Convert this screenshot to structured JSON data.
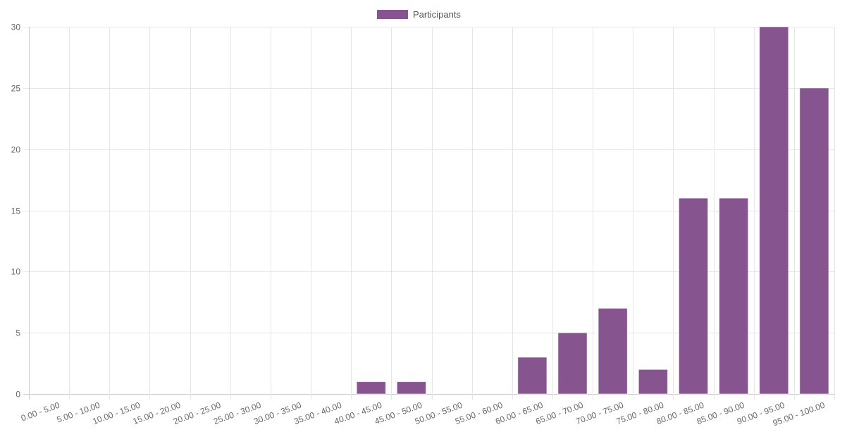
{
  "chart_data": {
    "type": "bar",
    "categories": [
      "0.00 - 5.00",
      "5.00 - 10.00",
      "10.00 - 15.00",
      "15.00 - 20.00",
      "20.00 - 25.00",
      "25.00 - 30.00",
      "30.00 - 35.00",
      "35.00 - 40.00",
      "40.00 - 45.00",
      "45.00 - 50.00",
      "50.00 - 55.00",
      "55.00 - 60.00",
      "60.00 - 65.00",
      "65.00 - 70.00",
      "70.00 - 75.00",
      "75.00 - 80.00",
      "80.00 - 85.00",
      "85.00 - 90.00",
      "90.00 - 95.00",
      "95.00 - 100.00"
    ],
    "series": [
      {
        "name": "Participants",
        "values": [
          0,
          0,
          0,
          0,
          0,
          0,
          0,
          0,
          1,
          1,
          0,
          0,
          3,
          5,
          7,
          2,
          16,
          16,
          30,
          25
        ],
        "color": "#86548f"
      }
    ],
    "y_ticks": [
      0,
      5,
      10,
      15,
      20,
      25,
      30
    ],
    "ylim": [
      0,
      30
    ],
    "grid": true,
    "legend_position": "top-center",
    "title": "",
    "xlabel": "",
    "ylabel": ""
  }
}
